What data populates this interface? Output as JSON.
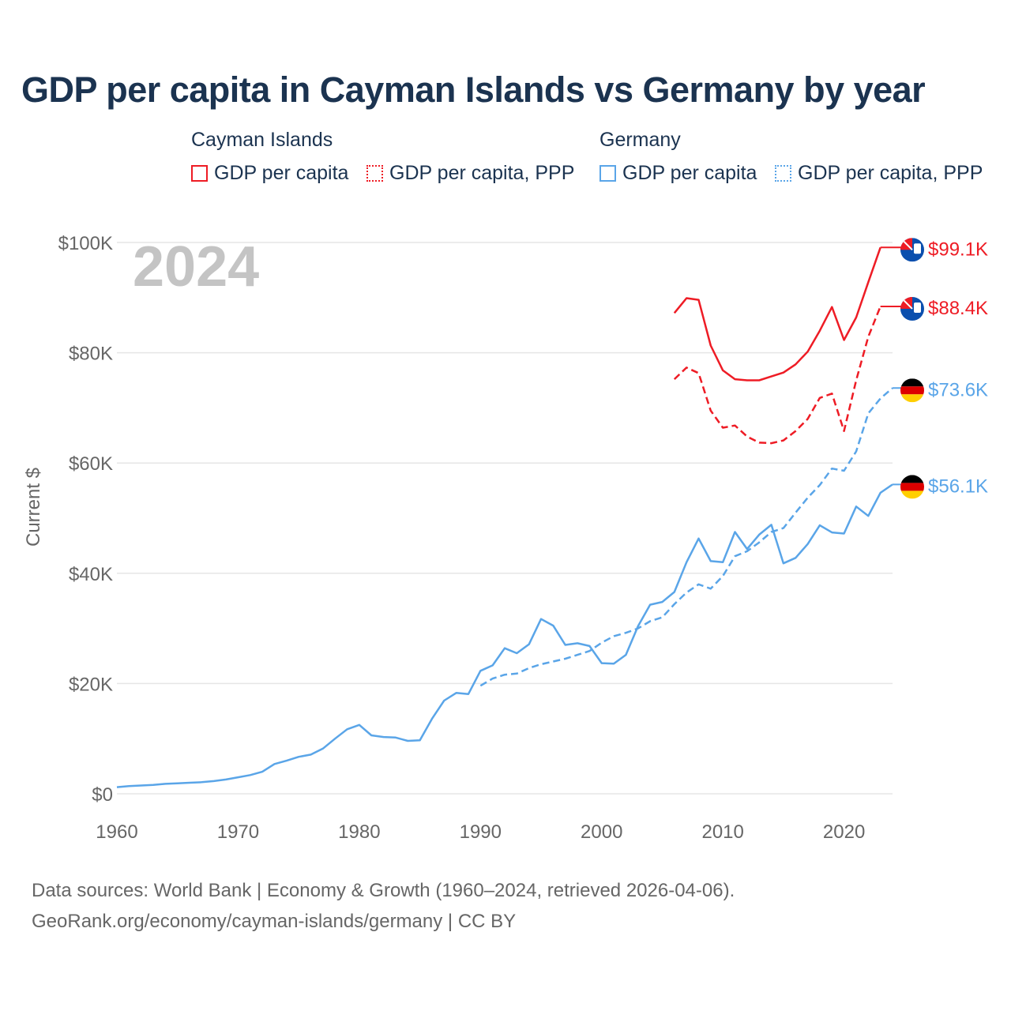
{
  "title": "GDP per capita in Cayman Islands vs Germany by year",
  "legend": {
    "groups": [
      {
        "name": "Cayman Islands",
        "items": [
          "GDP per capita",
          "GDP per capita, PPP"
        ],
        "color": "#ee1c25"
      },
      {
        "name": "Germany",
        "items": [
          "GDP per capita",
          "GDP per capita, PPP"
        ],
        "color": "#5aa5e8"
      }
    ]
  },
  "footer": {
    "line1": "Data sources: World Bank | Economy & Growth (1960–2024, retrieved 2026-04-06).",
    "line2": "GeoRank.org/economy/cayman-islands/germany | CC BY"
  },
  "chart_data": {
    "type": "line",
    "title": "GDP per capita in Cayman Islands vs Germany by year",
    "ylabel": "Current $",
    "xlabel": "",
    "year_label": "2024",
    "xlim": [
      1960,
      2024
    ],
    "ylim": [
      0,
      100000
    ],
    "xticks": [
      "1960",
      "1970",
      "1980",
      "1990",
      "2000",
      "2010",
      "2020"
    ],
    "yticks": [
      "$0",
      "$20K",
      "$40K",
      "$60K",
      "$80K",
      "$100K"
    ],
    "grid": true,
    "series": [
      {
        "name": "Cayman Islands GDP per capita",
        "color": "#ee1c25",
        "dash": false,
        "end_label": "$99.1K",
        "flag": "cayman-islands",
        "x": [
          2006,
          2007,
          2008,
          2009,
          2010,
          2011,
          2012,
          2013,
          2014,
          2015,
          2016,
          2017,
          2018,
          2019,
          2020,
          2021,
          2022,
          2023
        ],
        "values": [
          87.2,
          89.9,
          89.6,
          81.3,
          76.8,
          75.2,
          75.0,
          75.0,
          75.7,
          76.4,
          77.9,
          80.2,
          84.0,
          88.3,
          82.3,
          86.4,
          92.8,
          99.1
        ]
      },
      {
        "name": "Cayman Islands GDP per capita, PPP",
        "color": "#ee1c25",
        "dash": true,
        "end_label": "$88.4K",
        "flag": "cayman-islands",
        "x": [
          2006,
          2007,
          2008,
          2009,
          2010,
          2011,
          2012,
          2013,
          2014,
          2015,
          2016,
          2017,
          2018,
          2019,
          2020,
          2021,
          2022,
          2023
        ],
        "values": [
          75.2,
          77.3,
          76.3,
          69.5,
          66.4,
          66.8,
          64.8,
          63.7,
          63.6,
          64.1,
          65.8,
          68.0,
          71.8,
          72.6,
          65.8,
          75.0,
          82.9,
          88.4
        ]
      },
      {
        "name": "Germany GDP per capita, PPP",
        "color": "#5aa5e8",
        "dash": true,
        "end_label": "$73.6K",
        "flag": "germany",
        "x": [
          1990,
          1991,
          1992,
          1993,
          1994,
          1995,
          1996,
          1997,
          1998,
          1999,
          2000,
          2001,
          2002,
          2003,
          2004,
          2005,
          2006,
          2007,
          2008,
          2009,
          2010,
          2011,
          2012,
          2013,
          2014,
          2015,
          2016,
          2017,
          2018,
          2019,
          2020,
          2021,
          2022,
          2023,
          2024
        ],
        "values": [
          19.6,
          20.9,
          21.6,
          21.8,
          22.8,
          23.5,
          24.0,
          24.5,
          25.2,
          25.9,
          27.4,
          28.6,
          29.2,
          30.0,
          31.3,
          32.0,
          34.4,
          36.5,
          38.0,
          37.2,
          39.5,
          43.1,
          44.0,
          45.6,
          47.5,
          48.2,
          51.0,
          53.7,
          56.0,
          59.0,
          58.6,
          62.1,
          69.0,
          71.7,
          73.6
        ]
      },
      {
        "name": "Germany GDP per capita",
        "color": "#5aa5e8",
        "dash": false,
        "end_label": "$56.1K",
        "flag": "germany",
        "x": [
          1960,
          1961,
          1962,
          1963,
          1964,
          1965,
          1966,
          1967,
          1968,
          1969,
          1970,
          1971,
          1972,
          1973,
          1974,
          1975,
          1976,
          1977,
          1978,
          1979,
          1980,
          1981,
          1982,
          1983,
          1984,
          1985,
          1986,
          1987,
          1988,
          1989,
          1990,
          1991,
          1992,
          1993,
          1994,
          1995,
          1996,
          1997,
          1998,
          1999,
          2000,
          2001,
          2002,
          2003,
          2004,
          2005,
          2006,
          2007,
          2008,
          2009,
          2010,
          2011,
          2012,
          2013,
          2014,
          2015,
          2016,
          2017,
          2018,
          2019,
          2020,
          2021,
          2022,
          2023,
          2024
        ],
        "values": [
          1.2,
          1.4,
          1.5,
          1.6,
          1.8,
          1.9,
          2.0,
          2.1,
          2.3,
          2.6,
          3.0,
          3.4,
          4.0,
          5.4,
          6.0,
          6.7,
          7.1,
          8.2,
          10.0,
          11.7,
          12.5,
          10.6,
          10.3,
          10.2,
          9.6,
          9.7,
          13.6,
          16.9,
          18.3,
          18.1,
          22.3,
          23.3,
          26.4,
          25.5,
          27.1,
          31.7,
          30.5,
          27.0,
          27.3,
          26.8,
          23.7,
          23.6,
          25.2,
          30.4,
          34.3,
          34.8,
          36.6,
          42.0,
          46.3,
          42.2,
          42.0,
          47.5,
          44.4,
          47.0,
          48.8,
          41.8,
          42.8,
          45.3,
          48.7,
          47.4,
          47.2,
          52.1,
          50.4,
          54.6,
          56.1
        ]
      }
    ],
    "value_unit": "thousand USD"
  }
}
